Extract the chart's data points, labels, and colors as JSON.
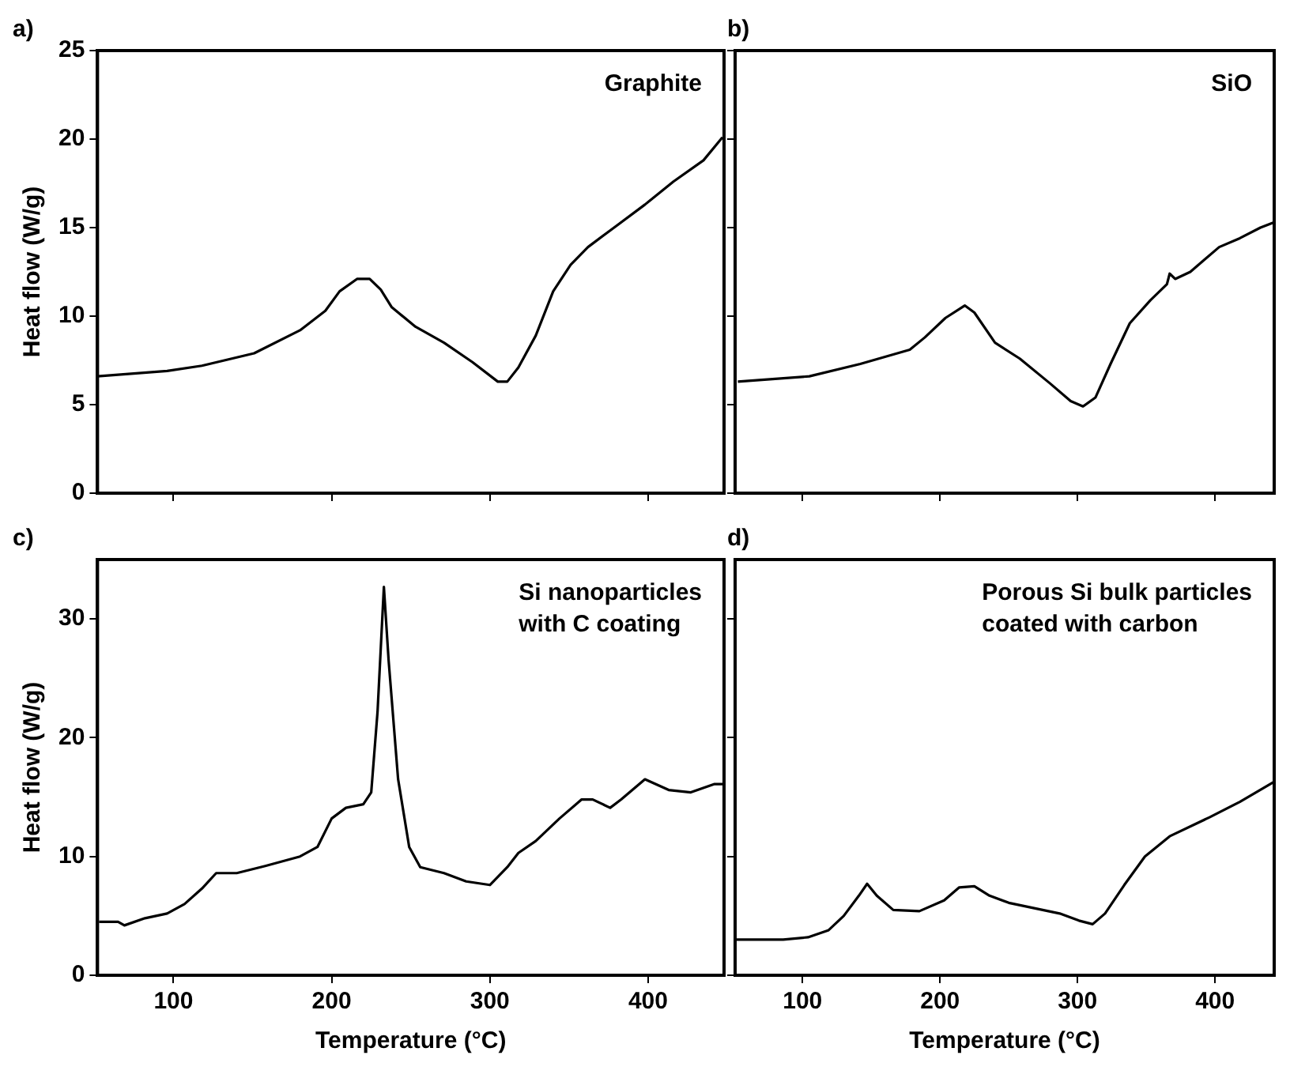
{
  "chart_data": [
    {
      "type": "line",
      "title": "a)",
      "ylabel": "Heat flow (W/g)",
      "annotations": [
        "Graphite"
      ],
      "xlim": [
        52,
        448
      ],
      "ylim": [
        0,
        25
      ],
      "xticks": [
        100,
        200,
        300,
        400
      ],
      "yticks": [
        0,
        5,
        10,
        15,
        20,
        25
      ],
      "tick_labels": "y",
      "grid": false,
      "legend": false,
      "series": [
        {
          "color": "#000000",
          "x": [
            52,
            96,
            118,
            151,
            180,
            196,
            205,
            216,
            224,
            231,
            238,
            253,
            271,
            289,
            305,
            311,
            318,
            329,
            340,
            351,
            362,
            380,
            398,
            416,
            435,
            447
          ],
          "values": [
            6.6,
            6.9,
            7.2,
            7.9,
            9.2,
            10.3,
            11.4,
            12.1,
            12.1,
            11.5,
            10.5,
            9.4,
            8.5,
            7.4,
            6.3,
            6.3,
            7.1,
            8.9,
            11.4,
            12.9,
            13.9,
            15.1,
            16.3,
            17.6,
            18.8,
            20.1
          ]
        }
      ]
    },
    {
      "type": "line",
      "title": "b)",
      "annotations": [
        "SiO"
      ],
      "xlim": [
        51,
        443
      ],
      "ylim": [
        0,
        25
      ],
      "xticks": [
        100,
        200,
        300,
        400
      ],
      "yticks": [
        0,
        5,
        10,
        15,
        20,
        25
      ],
      "tick_labels": false,
      "grid": false,
      "legend": false,
      "series": [
        {
          "color": "#000000",
          "x": [
            53,
            105,
            142,
            178,
            189,
            204,
            218,
            225,
            240,
            258,
            280,
            295,
            304,
            313,
            324,
            338,
            353,
            365,
            367,
            371,
            382,
            403,
            418,
            433,
            443
          ],
          "values": [
            6.3,
            6.6,
            7.3,
            8.1,
            8.8,
            9.9,
            10.6,
            10.2,
            8.5,
            7.6,
            6.2,
            5.2,
            4.9,
            5.4,
            7.3,
            9.6,
            10.9,
            11.8,
            12.4,
            12.1,
            12.5,
            13.9,
            14.4,
            15.0,
            15.3
          ]
        }
      ]
    },
    {
      "type": "line",
      "title": "c)",
      "xlabel": "Temperature (°C)",
      "ylabel": "Heat flow (W/g)",
      "annotations": [
        "Si nanoparticles\nwith C coating"
      ],
      "xlim": [
        52,
        448
      ],
      "ylim": [
        0,
        35
      ],
      "xticks": [
        100,
        200,
        300,
        400
      ],
      "yticks": [
        0,
        10,
        20,
        30
      ],
      "grid": false,
      "legend": false,
      "series": [
        {
          "color": "#000000",
          "x": [
            53,
            65,
            69,
            82,
            96,
            107,
            118,
            127,
            140,
            158,
            180,
            191,
            200,
            209,
            220,
            225,
            229,
            233,
            236,
            242,
            249,
            256,
            271,
            285,
            300,
            311,
            318,
            329,
            344,
            358,
            365,
            376,
            383,
            398,
            413,
            427,
            442,
            447
          ],
          "values": [
            4.5,
            4.5,
            4.2,
            4.8,
            5.2,
            6.0,
            7.3,
            8.6,
            8.6,
            9.2,
            10.0,
            10.8,
            13.2,
            14.1,
            14.4,
            15.4,
            22.2,
            32.7,
            26.5,
            16.5,
            10.8,
            9.1,
            8.6,
            7.9,
            7.6,
            9.1,
            10.3,
            11.3,
            13.2,
            14.8,
            14.8,
            14.1,
            14.8,
            16.5,
            15.6,
            15.4,
            16.1,
            16.1
          ]
        }
      ]
    },
    {
      "type": "line",
      "title": "d)",
      "xlabel": "Temperature (°C)",
      "annotations": [
        "Porous Si bulk particles\ncoated with carbon"
      ],
      "xlim": [
        51,
        443
      ],
      "ylim": [
        0,
        35
      ],
      "xticks": [
        100,
        200,
        300,
        400
      ],
      "yticks": [
        0,
        10,
        20,
        30
      ],
      "tick_labels": "x",
      "grid": false,
      "legend": false,
      "series": [
        {
          "color": "#000000",
          "x": [
            51,
            86,
            104,
            119,
            130,
            141,
            147,
            154,
            166,
            185,
            203,
            214,
            225,
            236,
            250,
            287,
            301,
            311,
            320,
            334,
            349,
            367,
            396,
            418,
            443
          ],
          "values": [
            3.0,
            3.0,
            3.2,
            3.8,
            5.0,
            6.7,
            7.7,
            6.7,
            5.5,
            5.4,
            6.3,
            7.4,
            7.5,
            6.7,
            6.1,
            5.2,
            4.6,
            4.3,
            5.2,
            7.6,
            10.0,
            11.7,
            13.3,
            14.6,
            16.3
          ]
        }
      ]
    }
  ]
}
